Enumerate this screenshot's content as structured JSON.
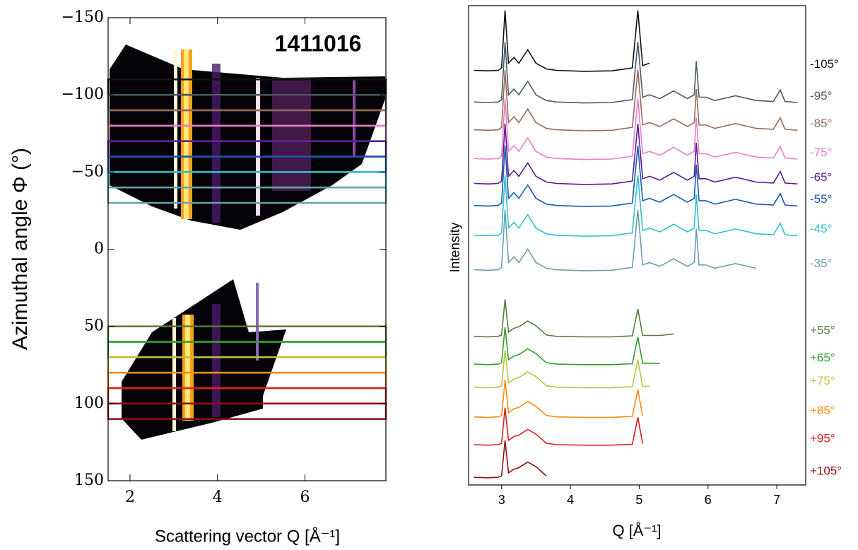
{
  "chart_data": [
    {
      "type": "image",
      "annotation": "1411016",
      "x_label": "Scattering vector Q [Å⁻¹]",
      "y_label": "Azimuthal angle Φ (°)",
      "xlim": [
        1.5,
        7.85
      ],
      "ylim": [
        -150,
        150
      ],
      "invert_y": true,
      "xticks": [
        2,
        4,
        6
      ],
      "yticks": [
        {
          "value": -150,
          "label": "−150"
        },
        {
          "value": -100,
          "label": "−100"
        },
        {
          "value": -50,
          "label": "−50"
        },
        0,
        50,
        100,
        150
      ],
      "bands": [
        {
          "range": [
            -110,
            -100
          ],
          "color": "#111111"
        },
        {
          "range": [
            -100,
            -90
          ],
          "color": "#4a5a66"
        },
        {
          "range": [
            -90,
            -80
          ],
          "color": "#9a6a5a"
        },
        {
          "range": [
            -80,
            -70
          ],
          "color": "#e87fc8"
        },
        {
          "range": [
            -70,
            -60
          ],
          "color": "#5a1a90"
        },
        {
          "range": [
            -60,
            -50
          ],
          "color": "#1a5ab0"
        },
        {
          "range": [
            -50,
            -40
          ],
          "color": "#30c0d0"
        },
        {
          "range": [
            -40,
            -30
          ],
          "color": "#6aa0a8"
        },
        {
          "range": [
            50,
            60
          ],
          "color": "#5a7a3a"
        },
        {
          "range": [
            60,
            70
          ],
          "color": "#30a030"
        },
        {
          "range": [
            70,
            80
          ],
          "color": "#c0c040"
        },
        {
          "range": [
            80,
            90
          ],
          "color": "#ff8a10"
        },
        {
          "range": [
            90,
            100
          ],
          "color": "#d82020"
        },
        {
          "range": [
            100,
            110
          ],
          "color": "#8b1010"
        }
      ]
    },
    {
      "type": "line",
      "x_label": "Q [Å⁻¹]",
      "y_label": "Intensity",
      "xlim": [
        2.52,
        7.42
      ],
      "ylim": [
        0,
        100
      ],
      "xticks": [
        3,
        4,
        5,
        6,
        7
      ],
      "x": [
        2.6,
        2.8,
        2.95,
        3.0,
        3.05,
        3.1,
        3.18,
        3.25,
        3.38,
        3.5,
        3.65,
        3.8,
        4.2,
        4.6,
        4.9,
        4.98,
        5.05,
        5.15,
        5.3,
        5.5,
        5.7,
        5.8,
        5.83,
        5.87,
        5.97,
        6.1,
        6.4,
        6.7,
        6.95,
        7.05,
        7.12,
        7.3
      ],
      "series": [
        {
          "name": "-105°",
          "color": "#111111",
          "values": [
            86.5,
            86.4,
            86.5,
            87,
            99,
            88,
            89.2,
            88,
            90.8,
            88,
            86.8,
            86.5,
            86.3,
            86.4,
            87,
            99,
            87.5,
            88,
            null,
            null,
            null,
            null,
            null,
            null,
            null,
            null,
            null,
            null,
            null,
            null,
            null,
            null
          ]
        },
        {
          "name": "-95°",
          "color": "#4a5a66",
          "values": [
            79.9,
            79.8,
            79.9,
            80.4,
            92.4,
            81.4,
            82.6,
            81.4,
            84.2,
            81.4,
            80.2,
            79.9,
            79.7,
            79.8,
            80.4,
            92.4,
            80.9,
            81.4,
            80.6,
            82.2,
            80.6,
            81.4,
            88.4,
            80.9,
            80.9,
            80.2,
            81.2,
            80.2,
            80,
            82.4,
            80,
            79.8
          ]
        },
        {
          "name": "-85°",
          "color": "#9a6a5a",
          "values": [
            74.1,
            74,
            74.1,
            74.6,
            86.6,
            75.6,
            76.8,
            75.6,
            78.4,
            75.6,
            74.4,
            74.1,
            73.9,
            74,
            74.6,
            86.6,
            75.1,
            75.6,
            74.8,
            76.4,
            74.8,
            75.6,
            82.6,
            75.1,
            75.1,
            74.4,
            75.4,
            74.4,
            74.2,
            76.6,
            74.2,
            74
          ]
        },
        {
          "name": "-75°",
          "color": "#e87fc8",
          "values": [
            68.1,
            68,
            68.1,
            68.6,
            80.6,
            69.6,
            70.8,
            69.6,
            72.4,
            69.6,
            68.4,
            68.1,
            67.9,
            68,
            68.6,
            80.6,
            69.1,
            69.6,
            68.8,
            70.4,
            68.8,
            69.6,
            76.6,
            69.1,
            69.1,
            68.4,
            69.4,
            68.4,
            68.2,
            70.6,
            68.2,
            68
          ]
        },
        {
          "name": "-65°",
          "color": "#5a1a90",
          "values": [
            62.9,
            62.8,
            62.9,
            63.4,
            75.4,
            64.4,
            65.6,
            64.4,
            67.2,
            64.4,
            63.2,
            62.9,
            62.7,
            62.8,
            63.4,
            75.4,
            63.9,
            64.4,
            63.6,
            65.2,
            63.6,
            64.4,
            71.4,
            63.9,
            63.9,
            63.2,
            64.2,
            63.2,
            63,
            65.4,
            63,
            62.8
          ]
        },
        {
          "name": "-55°",
          "color": "#1a5ab0",
          "values": [
            58.3,
            58.2,
            58.3,
            58.8,
            70.8,
            59.8,
            61,
            59.8,
            62.6,
            59.8,
            58.6,
            58.3,
            58.1,
            58.2,
            58.8,
            70.8,
            59.3,
            59.8,
            59,
            60.6,
            59,
            59.8,
            66.8,
            59.3,
            59.3,
            58.6,
            59.6,
            58.6,
            58.4,
            60.8,
            58.4,
            58.2
          ]
        },
        {
          "name": "-45°",
          "color": "#30c0d0",
          "values": [
            52.1,
            52,
            52.1,
            52.6,
            64.6,
            53.6,
            54.8,
            53.6,
            56.4,
            53.6,
            52.4,
            52.1,
            51.9,
            52,
            52.6,
            64.6,
            53.1,
            53.6,
            52.8,
            54.4,
            52.8,
            53.6,
            60.6,
            53.1,
            53.1,
            52.4,
            53.4,
            52.4,
            52.2,
            54.6,
            52.2,
            52
          ]
        },
        {
          "name": "-35°",
          "color": "#6aa0a8",
          "values": [
            44.9,
            44.8,
            44.9,
            45.4,
            57.4,
            46.4,
            47.6,
            46.4,
            49.2,
            46.4,
            45.2,
            44.9,
            44.7,
            44.8,
            45.4,
            57.4,
            45.9,
            46.4,
            45.6,
            47.2,
            45.6,
            46.4,
            53.4,
            45.9,
            45.9,
            45.2,
            46.2,
            45.2,
            null,
            null,
            null,
            null
          ]
        },
        {
          "name": "+55°",
          "color": "#5a7a3a",
          "values": [
            31,
            30.9,
            31,
            31.3,
            38.7,
            31.9,
            32.7,
            33,
            34.2,
            33.2,
            31.3,
            31,
            30.9,
            30.9,
            31.1,
            36.7,
            31.2,
            31.2,
            31.2,
            31.5,
            null,
            null,
            null,
            null,
            null,
            null,
            null,
            null,
            null,
            null,
            null,
            null
          ]
        },
        {
          "name": "+65°",
          "color": "#30a030",
          "values": [
            25.2,
            25.1,
            25.2,
            25.5,
            32.9,
            26.1,
            26.9,
            27.2,
            28.4,
            27.4,
            25.5,
            25.2,
            25.1,
            25.1,
            25.3,
            30.9,
            25.4,
            25.4,
            25.4,
            null,
            null,
            null,
            null,
            null,
            null,
            null,
            null,
            null,
            null,
            null,
            null,
            null
          ]
        },
        {
          "name": "+75°",
          "color": "#c0c040",
          "values": [
            20.4,
            20.3,
            20.4,
            20.7,
            28.1,
            21.3,
            22.1,
            22.4,
            23.6,
            22.6,
            20.7,
            20.4,
            20.3,
            20.3,
            20.5,
            26.1,
            20.6,
            20.6,
            null,
            null,
            null,
            null,
            null,
            null,
            null,
            null,
            null,
            null,
            null,
            null,
            null,
            null
          ]
        },
        {
          "name": "+85°",
          "color": "#ff8a10",
          "values": [
            14.2,
            14.1,
            14.2,
            14.5,
            21.9,
            15.1,
            15.9,
            16.2,
            17.4,
            16.4,
            14.5,
            14.2,
            14.1,
            14.1,
            14.3,
            19.9,
            14.4,
            null,
            null,
            null,
            null,
            null,
            null,
            null,
            null,
            null,
            null,
            null,
            null,
            null,
            null,
            null
          ]
        },
        {
          "name": "+95°",
          "color": "#d82020",
          "values": [
            8.4,
            8.3,
            8.4,
            8.7,
            16.1,
            9.3,
            10.1,
            10.4,
            11.6,
            10.6,
            8.7,
            8.4,
            8.3,
            8.3,
            8.5,
            14.1,
            8.6,
            null,
            null,
            null,
            null,
            null,
            null,
            null,
            null,
            null,
            null,
            null,
            null,
            null,
            null,
            null
          ]
        },
        {
          "name": "+105°",
          "color": "#8b1010",
          "values": [
            1.6,
            1.5,
            1.6,
            1.9,
            9.3,
            2.5,
            3.3,
            3.6,
            4.8,
            3.8,
            1.9,
            null,
            null,
            null,
            null,
            null,
            null,
            null,
            null,
            null,
            null,
            null,
            null,
            null,
            null,
            null,
            null,
            null,
            null,
            null,
            null,
            null
          ]
        }
      ]
    }
  ]
}
